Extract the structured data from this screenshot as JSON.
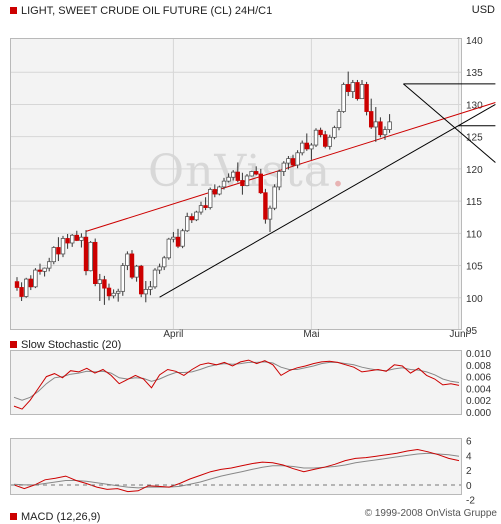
{
  "header": {
    "title": "LIGHT, SWEET CRUDE OIL FUTURE (CL) 24H/C1",
    "currency": "USD"
  },
  "watermark": "OnVista",
  "copyright": "© 1999-2008 OnVista Gruppe",
  "colors": {
    "up": "#ffffff",
    "down": "#cc0000",
    "trend_red": "#cc0000",
    "trend_black": "#000000",
    "signal": "#888888"
  },
  "chart_data": [
    {
      "type": "candlestick",
      "title": "LIGHT, SWEET CRUDE OIL FUTURE (CL) 24H/C1",
      "ylabel": "USD",
      "ylim": [
        95,
        140
      ],
      "yticks": [
        95,
        100,
        105,
        110,
        115,
        120,
        125,
        130,
        135,
        140
      ],
      "xlabels": [
        {
          "label": "April",
          "index": 34
        },
        {
          "label": "Mai",
          "index": 64
        },
        {
          "label": "Juni",
          "index": 96
        }
      ],
      "grid": true,
      "series": [
        {
          "name": "candles",
          "values": [
            [
              102.5,
              103.2,
              101.1,
              101.6
            ],
            [
              101.6,
              102.4,
              99.5,
              100.2
            ],
            [
              100.2,
              103.1,
              100.0,
              102.9
            ],
            [
              102.9,
              103.5,
              101.2,
              101.7
            ],
            [
              101.7,
              104.6,
              101.5,
              104.3
            ],
            [
              104.3,
              105.3,
              103.6,
              104.1
            ],
            [
              104.1,
              104.7,
              103.3,
              104.6
            ],
            [
              104.6,
              106.2,
              104.1,
              105.6
            ],
            [
              105.6,
              108.0,
              105.2,
              107.8
            ],
            [
              107.8,
              109.4,
              105.7,
              106.8
            ],
            [
              106.8,
              109.6,
              106.3,
              109.2
            ],
            [
              109.2,
              109.9,
              107.6,
              108.5
            ],
            [
              108.5,
              109.9,
              107.9,
              109.7
            ],
            [
              109.7,
              110.4,
              108.8,
              108.9
            ],
            [
              108.9,
              110.0,
              107.8,
              109.4
            ],
            [
              109.4,
              110.5,
              103.5,
              104.2
            ],
            [
              104.2,
              108.8,
              104.1,
              108.6
            ],
            [
              108.6,
              109.2,
              101.8,
              102.2
            ],
            [
              102.2,
              103.7,
              99.5,
              102.8
            ],
            [
              102.8,
              103.4,
              98.9,
              101.5
            ],
            [
              101.5,
              102.2,
              99.6,
              100.3
            ],
            [
              100.3,
              101.3,
              99.9,
              100.7
            ],
            [
              100.7,
              101.4,
              99.4,
              101.0
            ],
            [
              101.0,
              105.4,
              100.3,
              105.0
            ],
            [
              105.0,
              107.2,
              104.3,
              106.8
            ],
            [
              106.8,
              107.4,
              102.9,
              103.2
            ],
            [
              103.2,
              105.1,
              102.5,
              104.9
            ],
            [
              104.9,
              105.1,
              100.1,
              100.6
            ],
            [
              100.6,
              102.6,
              99.3,
              101.3
            ],
            [
              101.3,
              102.6,
              100.4,
              101.7
            ],
            [
              101.7,
              104.6,
              101.4,
              104.3
            ],
            [
              104.3,
              105.3,
              103.7,
              104.8
            ],
            [
              104.8,
              106.5,
              104.3,
              106.2
            ],
            [
              106.2,
              109.3,
              105.9,
              109.1
            ],
            [
              109.1,
              110.2,
              108.6,
              109.4
            ],
            [
              109.4,
              110.7,
              107.7,
              108.0
            ],
            [
              108.0,
              110.7,
              107.7,
              110.4
            ],
            [
              110.4,
              113.2,
              110.2,
              112.6
            ],
            [
              112.6,
              113.1,
              111.6,
              112.1
            ],
            [
              112.1,
              113.5,
              111.9,
              113.3
            ],
            [
              113.3,
              114.9,
              112.9,
              114.3
            ],
            [
              114.3,
              115.6,
              113.6,
              114.0
            ],
            [
              114.0,
              117.1,
              113.7,
              116.8
            ],
            [
              116.8,
              117.6,
              115.6,
              116.1
            ],
            [
              116.1,
              117.4,
              115.9,
              117.2
            ],
            [
              117.2,
              118.6,
              116.8,
              118.1
            ],
            [
              118.1,
              119.3,
              117.9,
              118.7
            ],
            [
              118.7,
              119.8,
              118.2,
              119.5
            ],
            [
              119.5,
              121.0,
              117.9,
              118.2
            ],
            [
              118.2,
              119.4,
              116.0,
              117.4
            ],
            [
              117.4,
              119.2,
              117.3,
              118.9
            ],
            [
              118.9,
              119.7,
              118.8,
              119.6
            ],
            [
              119.6,
              120.4,
              119.0,
              119.2
            ],
            [
              119.2,
              120.0,
              116.1,
              116.3
            ],
            [
              116.3,
              116.9,
              111.5,
              112.2
            ],
            [
              112.2,
              114.3,
              110.2,
              113.9
            ],
            [
              113.9,
              117.6,
              113.6,
              117.2
            ],
            [
              117.2,
              119.9,
              116.7,
              119.6
            ],
            [
              119.6,
              121.2,
              118.9,
              120.9
            ],
            [
              120.9,
              122.0,
              119.9,
              121.6
            ],
            [
              121.6,
              122.2,
              120.4,
              120.6
            ],
            [
              120.6,
              122.9,
              120.1,
              122.5
            ],
            [
              122.5,
              124.4,
              122.1,
              124.0
            ],
            [
              124.0,
              125.5,
              122.8,
              123.1
            ],
            [
              123.1,
              124.0,
              121.4,
              123.7
            ],
            [
              123.7,
              126.3,
              123.4,
              126.0
            ],
            [
              126.0,
              126.4,
              124.9,
              125.3
            ],
            [
              125.3,
              125.9,
              123.2,
              123.5
            ],
            [
              123.5,
              125.3,
              123.0,
              124.9
            ],
            [
              124.9,
              126.7,
              124.6,
              126.4
            ],
            [
              126.4,
              129.3,
              126.0,
              128.9
            ],
            [
              128.9,
              133.4,
              128.7,
              133.1
            ],
            [
              133.1,
              135.1,
              131.3,
              132.0
            ],
            [
              132.0,
              133.8,
              131.0,
              133.4
            ],
            [
              133.4,
              133.8,
              130.6,
              130.9
            ],
            [
              130.9,
              133.8,
              130.9,
              133.1
            ],
            [
              133.1,
              133.5,
              128.3,
              128.9
            ],
            [
              128.9,
              130.9,
              126.2,
              126.5
            ],
            [
              126.5,
              129.6,
              124.2,
              127.3
            ],
            [
              127.3,
              128.0,
              124.9,
              125.3
            ],
            [
              125.3,
              126.6,
              124.5,
              126.1
            ],
            [
              126.1,
              128.5,
              125.6,
              127.3
            ]
          ]
        }
      ]
    },
    {
      "type": "line",
      "title": "Slow Stochastic (20)",
      "ylim": [
        0.0,
        0.01
      ],
      "yticks": [
        "0.010",
        "0.008",
        "0.006",
        "0.004",
        "0.002",
        "0.000"
      ],
      "series": [
        {
          "name": "%K",
          "color": "#cc0000",
          "values": [
            0.001,
            0.0005,
            0.002,
            0.004,
            0.006,
            0.0065,
            0.0058,
            0.007,
            0.0068,
            0.0074,
            0.0066,
            0.0072,
            0.0062,
            0.0048,
            0.0055,
            0.0062,
            0.0056,
            0.0041,
            0.0063,
            0.0072,
            0.0069,
            0.0062,
            0.0072,
            0.008,
            0.0083,
            0.008,
            0.0084,
            0.0078,
            0.0085,
            0.0088,
            0.0082,
            0.0087,
            0.008,
            0.0062,
            0.007,
            0.0075,
            0.0078,
            0.0082,
            0.0085,
            0.0086,
            0.0084,
            0.008,
            0.0076,
            0.0068,
            0.007,
            0.0072,
            0.0069,
            0.008,
            0.0078,
            0.0066,
            0.0074,
            0.0062,
            0.0056,
            0.0046,
            0.0048,
            0.0045
          ]
        },
        {
          "name": "%D",
          "color": "#888888",
          "values": [
            0.0025,
            0.002,
            0.0025,
            0.0035,
            0.0048,
            0.0058,
            0.006,
            0.0064,
            0.0066,
            0.0069,
            0.0068,
            0.0069,
            0.0066,
            0.0058,
            0.0056,
            0.0058,
            0.0057,
            0.0052,
            0.0056,
            0.0062,
            0.0067,
            0.0067,
            0.0068,
            0.0072,
            0.0077,
            0.008,
            0.0082,
            0.0081,
            0.0082,
            0.0084,
            0.0084,
            0.0085,
            0.0083,
            0.0076,
            0.0072,
            0.0072,
            0.0075,
            0.0078,
            0.0082,
            0.0084,
            0.0084,
            0.0082,
            0.008,
            0.0076,
            0.0073,
            0.0071,
            0.007,
            0.0073,
            0.0075,
            0.0072,
            0.0071,
            0.0068,
            0.0063,
            0.0056,
            0.0052,
            0.005
          ]
        }
      ]
    },
    {
      "type": "line",
      "title": "MACD (12,26,9)",
      "ylim": [
        -1.5,
        6.5
      ],
      "yticks": [
        6,
        4,
        2,
        0,
        -2
      ],
      "series": [
        {
          "name": "MACD",
          "color": "#cc0000",
          "values": [
            0.0,
            -0.5,
            0.0,
            0.7,
            0.9,
            1.2,
            0.6,
            0.2,
            -0.3,
            -0.6,
            -0.5,
            -0.9,
            -0.8,
            -0.1,
            -0.2,
            -0.3,
            0.2,
            0.8,
            1.3,
            1.8,
            2.1,
            2.3,
            2.6,
            2.9,
            3.1,
            3.0,
            2.7,
            2.2,
            1.8,
            2.1,
            2.4,
            2.8,
            3.3,
            3.6,
            3.7,
            3.9,
            4.1,
            4.3,
            4.6,
            4.8,
            4.5,
            4.1,
            3.6,
            3.3
          ]
        },
        {
          "name": "Signal",
          "color": "#888888",
          "values": [
            0.1,
            0.0,
            0.0,
            0.2,
            0.4,
            0.6,
            0.6,
            0.5,
            0.3,
            0.1,
            -0.1,
            -0.3,
            -0.4,
            -0.3,
            -0.3,
            -0.3,
            -0.2,
            0.1,
            0.4,
            0.8,
            1.2,
            1.5,
            1.8,
            2.1,
            2.4,
            2.6,
            2.6,
            2.5,
            2.3,
            2.3,
            2.4,
            2.5,
            2.7,
            3.0,
            3.2,
            3.4,
            3.6,
            3.8,
            4.0,
            4.2,
            4.3,
            4.2,
            4.1,
            3.9
          ]
        }
      ]
    }
  ]
}
